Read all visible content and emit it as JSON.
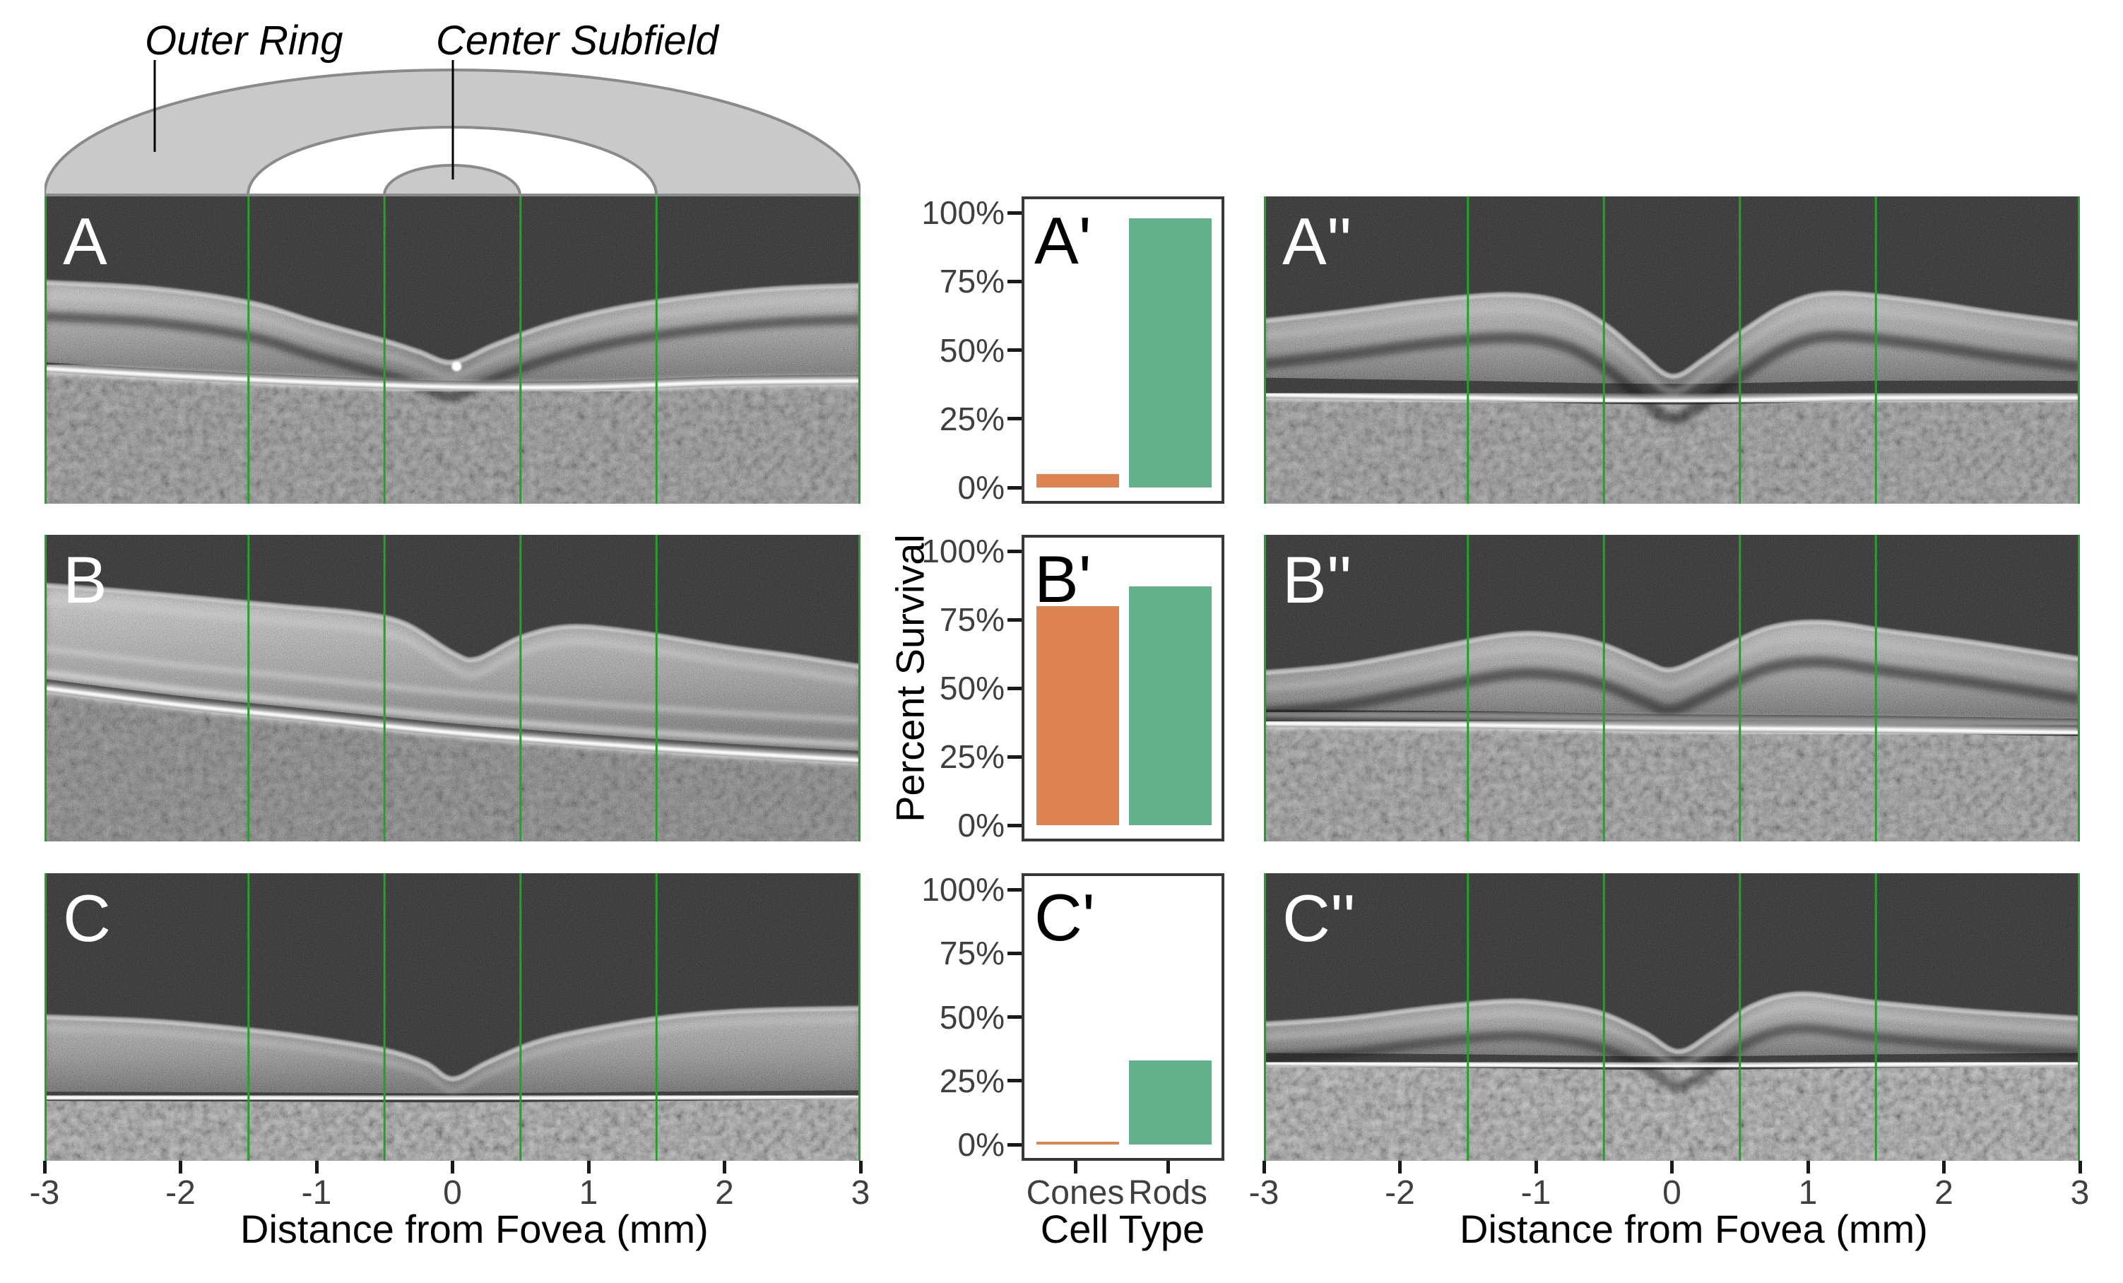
{
  "schematic": {
    "outer_ring_label": "Outer Ring",
    "center_subfield_label": "Center Subfield"
  },
  "axes": {
    "x_title": "Distance from Fovea (mm)",
    "x_ticks": [
      "-3",
      "-2",
      "-1",
      "0",
      "1",
      "2",
      "3"
    ],
    "y_title": "Percent Survival",
    "y_ticks": [
      "100%",
      "75%",
      "50%",
      "25%",
      "0%"
    ],
    "celltype_title": "Cell Type",
    "celltype_ticks": [
      "Cones",
      "Rods"
    ]
  },
  "rows": [
    {
      "oct_label": "A",
      "chart_label": "A'",
      "oct_right_label": "A''"
    },
    {
      "oct_label": "B",
      "chart_label": "B'",
      "oct_right_label": "B''"
    },
    {
      "oct_label": "C",
      "chart_label": "C'",
      "oct_right_label": "C''"
    }
  ],
  "oct": {
    "green_lines_mm": [
      -3,
      -1.5,
      -0.5,
      0.5,
      1.5,
      3
    ],
    "x_range_mm": [
      -3,
      3
    ]
  },
  "colors": {
    "cones_bar": "#DD8452",
    "rods_bar": "#64B08C",
    "grid_line_green": "#21A32B",
    "schematic_fill": "#C9C9C9",
    "schematic_stroke": "#8A8A8A",
    "tick_label": "#3F3F3F",
    "axis_title": "#000000",
    "panel_border": "#383838"
  },
  "chart_data": [
    {
      "type": "bar",
      "title": "A'",
      "categories": [
        "Cones",
        "Rods"
      ],
      "values": [
        5,
        98
      ],
      "xlabel": "Cell Type",
      "ylabel": "Percent Survival",
      "ylim": [
        0,
        100
      ],
      "ytick_labels": [
        "0%",
        "25%",
        "50%",
        "75%",
        "100%"
      ],
      "grid": false,
      "bar_colors": [
        "#DD8452",
        "#64B08C"
      ]
    },
    {
      "type": "bar",
      "title": "B'",
      "categories": [
        "Cones",
        "Rods"
      ],
      "values": [
        80,
        87
      ],
      "xlabel": "Cell Type",
      "ylabel": "Percent Survival",
      "ylim": [
        0,
        100
      ],
      "ytick_labels": [
        "0%",
        "25%",
        "50%",
        "75%",
        "100%"
      ],
      "grid": false,
      "bar_colors": [
        "#DD8452",
        "#64B08C"
      ]
    },
    {
      "type": "bar",
      "title": "C'",
      "categories": [
        "Cones",
        "Rods"
      ],
      "values": [
        1,
        33
      ],
      "xlabel": "Cell Type",
      "ylabel": "Percent Survival",
      "ylim": [
        0,
        100
      ],
      "ytick_labels": [
        "0%",
        "25%",
        "50%",
        "75%",
        "100%"
      ],
      "grid": false,
      "bar_colors": [
        "#DD8452",
        "#64B08C"
      ]
    }
  ]
}
